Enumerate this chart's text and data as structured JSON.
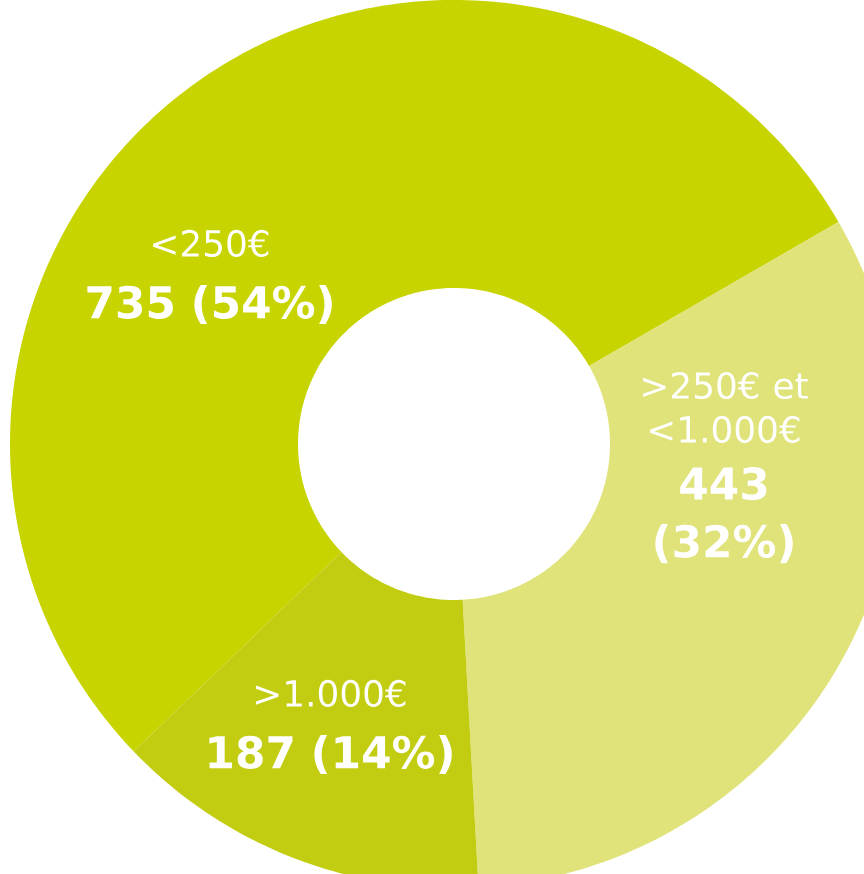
{
  "chart_data": {
    "type": "donut",
    "categories": [
      "<250€",
      ">250€ et <1.000€",
      ">1.000€"
    ],
    "values": [
      735,
      443,
      187
    ],
    "value_labels": [
      "735 (54%)",
      "443 (32%)",
      "187 (14%)"
    ],
    "colors": [
      "#c8d400",
      "#dfe37a",
      "#c2cd12"
    ]
  }
}
